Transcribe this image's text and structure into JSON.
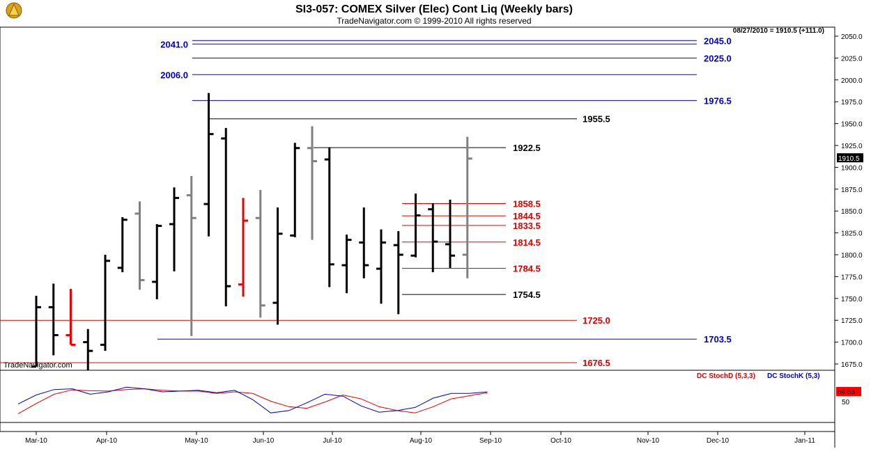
{
  "header": {
    "title": "SI3-057:  COMEX Silver (Elec) Cont Liq  (Weekly bars)",
    "subtitle": "TradeNavigator.com © 1999-2010 All rights reserved",
    "date_readout": "08/27/2010 = 1910.5 (+111.0)",
    "watermark": "TradeNavigator.com"
  },
  "colors": {
    "up_bar": "#000000",
    "alt_bar": "#808080",
    "down_bar": "#ee0000",
    "blue_level": "#0000cc",
    "red_level": "#dd0000",
    "black_level": "#000000",
    "stoch_d": "#dd0000",
    "stoch_k": "#0000cc"
  },
  "chart_data": {
    "type": "ohlc",
    "price_axis": {
      "ylim": [
        1665,
        2060
      ],
      "ticks": [
        "1675.0",
        "1700.0",
        "1725.0",
        "1750.0",
        "1775.0",
        "1800.0",
        "1825.0",
        "1850.0",
        "1875.0",
        "1900.0",
        "1925.0",
        "1950.0",
        "1975.0",
        "2000.0",
        "2025.0",
        "2050.0"
      ],
      "last_price": "1910.5"
    },
    "time_axis": {
      "labels": [
        "Mar-10",
        "Apr-10",
        "May-10",
        "Jun-10",
        "Jul-10",
        "Aug-10",
        "Sep-10",
        "Oct-10",
        "Nov-10",
        "Dec-10",
        "Jan-11"
      ]
    },
    "bars": [
      {
        "o": 1672,
        "h": 1753,
        "l": 1672,
        "c": 1740,
        "color": "up"
      },
      {
        "o": 1740,
        "h": 1767,
        "l": 1685,
        "c": 1708,
        "color": "up"
      },
      {
        "o": 1708,
        "h": 1761,
        "l": 1697,
        "c": 1697,
        "color": "down"
      },
      {
        "o": 1700,
        "h": 1715,
        "l": 1668,
        "c": 1690,
        "color": "up"
      },
      {
        "o": 1697,
        "h": 1800,
        "l": 1690,
        "c": 1793,
        "color": "up"
      },
      {
        "o": 1785,
        "h": 1843,
        "l": 1780,
        "c": 1840,
        "color": "up"
      },
      {
        "o": 1847,
        "h": 1861,
        "l": 1760,
        "c": 1771,
        "color": "alt"
      },
      {
        "o": 1769,
        "h": 1835,
        "l": 1749,
        "c": 1833,
        "color": "up"
      },
      {
        "o": 1835,
        "h": 1877,
        "l": 1781,
        "c": 1865,
        "color": "up"
      },
      {
        "o": 1868,
        "h": 1890,
        "l": 1707,
        "c": 1842,
        "color": "alt"
      },
      {
        "o": 1858,
        "h": 1985,
        "l": 1821,
        "c": 1938,
        "color": "up"
      },
      {
        "o": 1933,
        "h": 1945,
        "l": 1741,
        "c": 1764,
        "color": "up"
      },
      {
        "o": 1766,
        "h": 1865,
        "l": 1752,
        "c": 1839,
        "color": "down"
      },
      {
        "o": 1842,
        "h": 1874,
        "l": 1728,
        "c": 1742,
        "color": "alt"
      },
      {
        "o": 1745,
        "h": 1854,
        "l": 1720,
        "c": 1824,
        "color": "up"
      },
      {
        "o": 1822,
        "h": 1928,
        "l": 1820,
        "c": 1922,
        "color": "up"
      },
      {
        "o": 1922,
        "h": 1947,
        "l": 1817,
        "c": 1907,
        "color": "alt"
      },
      {
        "o": 1909,
        "h": 1923,
        "l": 1763,
        "c": 1789,
        "color": "up"
      },
      {
        "o": 1788,
        "h": 1823,
        "l": 1756,
        "c": 1817,
        "color": "up"
      },
      {
        "o": 1814,
        "h": 1854,
        "l": 1773,
        "c": 1788,
        "color": "up"
      },
      {
        "o": 1784,
        "h": 1829,
        "l": 1744,
        "c": 1814,
        "color": "up"
      },
      {
        "o": 1811,
        "h": 1827,
        "l": 1732,
        "c": 1800,
        "color": "up"
      },
      {
        "o": 1799,
        "h": 1870,
        "l": 1797,
        "c": 1845,
        "color": "up"
      },
      {
        "o": 1852,
        "h": 1859,
        "l": 1780,
        "c": 1815,
        "color": "up"
      },
      {
        "o": 1812,
        "h": 1863,
        "l": 1785,
        "c": 1799,
        "color": "up"
      },
      {
        "o": 1800,
        "h": 1935,
        "l": 1773,
        "c": 1910,
        "color": "alt"
      }
    ],
    "levels": [
      {
        "value": 2045.0,
        "label": "2045.0",
        "color": "blue_level",
        "side": "right"
      },
      {
        "value": 2041.0,
        "label": "2041.0",
        "color": "blue_level",
        "side": "left"
      },
      {
        "value": 2025.0,
        "label": "2025.0",
        "color": "blue_level",
        "side": "right"
      },
      {
        "value": 2006.0,
        "label": "2006.0",
        "color": "blue_level",
        "side": "left"
      },
      {
        "value": 1976.5,
        "label": "1976.5",
        "color": "blue_level",
        "side": "right"
      },
      {
        "value": 1955.5,
        "label": "1955.5",
        "color": "black_level",
        "side": "mid"
      },
      {
        "value": 1922.5,
        "label": "1922.5",
        "color": "black_level",
        "side": "short"
      },
      {
        "value": 1858.5,
        "label": "1858.5",
        "color": "red_level",
        "side": "short"
      },
      {
        "value": 1844.5,
        "label": "1844.5",
        "color": "red_level",
        "side": "short"
      },
      {
        "value": 1833.5,
        "label": "1833.5",
        "color": "red_level",
        "side": "short"
      },
      {
        "value": 1814.5,
        "label": "1814.5",
        "color": "red_level",
        "side": "short"
      },
      {
        "value": 1784.5,
        "label": "1784.5",
        "color": "red_level",
        "side": "short"
      },
      {
        "value": 1754.5,
        "label": "1754.5",
        "color": "black_level",
        "side": "short"
      },
      {
        "value": 1725.0,
        "label": "1725.0",
        "color": "red_level",
        "side": "mid"
      },
      {
        "value": 1703.5,
        "label": "1703.5",
        "color": "blue_level",
        "side": "right"
      },
      {
        "value": 1676.5,
        "label": "1676.5",
        "color": "red_level",
        "side": "mid"
      }
    ],
    "stochastic": {
      "legend_d": "DC StochD (5,3,3)",
      "legend_k": "DC StochK (5,3)",
      "ylim": [
        0,
        100
      ],
      "tick": "50",
      "last_value": "64.53",
      "k": [
        35,
        58,
        72,
        74,
        60,
        66,
        78,
        74,
        66,
        68,
        70,
        64,
        70,
        46,
        12,
        18,
        38,
        60,
        55,
        30,
        14,
        18,
        26,
        50,
        62,
        62,
        66
      ],
      "d": [
        10,
        36,
        60,
        71,
        69,
        68,
        72,
        74,
        70,
        68,
        68,
        62,
        66,
        62,
        42,
        28,
        24,
        40,
        58,
        48,
        28,
        18,
        12,
        28,
        48,
        56,
        64
      ]
    }
  }
}
